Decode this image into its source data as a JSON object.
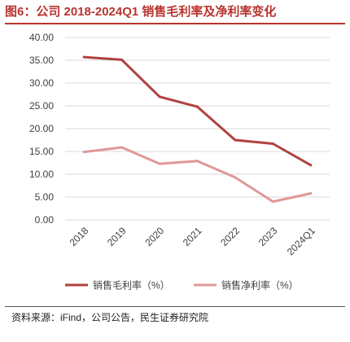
{
  "title": "图6：公司 2018-2024Q1 销售毛利率及净利率变化",
  "source": "资料来源：iFind，公司公告，民生证券研究院",
  "colors": {
    "accent": "#b8342f",
    "gross_margin": "#b0423f",
    "net_margin": "#e09898",
    "grid": "#d9d9d9",
    "axis_text": "#404040"
  },
  "chart_data": {
    "type": "line",
    "categories": [
      "2018",
      "2019",
      "2020",
      "2021",
      "2022",
      "2023",
      "2024Q1"
    ],
    "series": [
      {
        "name": "销售毛利率（%）",
        "values": [
          35.7,
          35.1,
          27.0,
          24.8,
          17.5,
          16.7,
          12.0
        ]
      },
      {
        "name": "销售净利率（%）",
        "values": [
          14.9,
          15.9,
          12.3,
          12.9,
          9.3,
          4.0,
          5.8
        ]
      }
    ],
    "ylim": [
      0,
      40
    ],
    "yticks": [
      "0.00",
      "5.00",
      "10.00",
      "15.00",
      "20.00",
      "25.00",
      "30.00",
      "35.00",
      "40.00"
    ],
    "grid": true,
    "legend_position": "bottom"
  }
}
